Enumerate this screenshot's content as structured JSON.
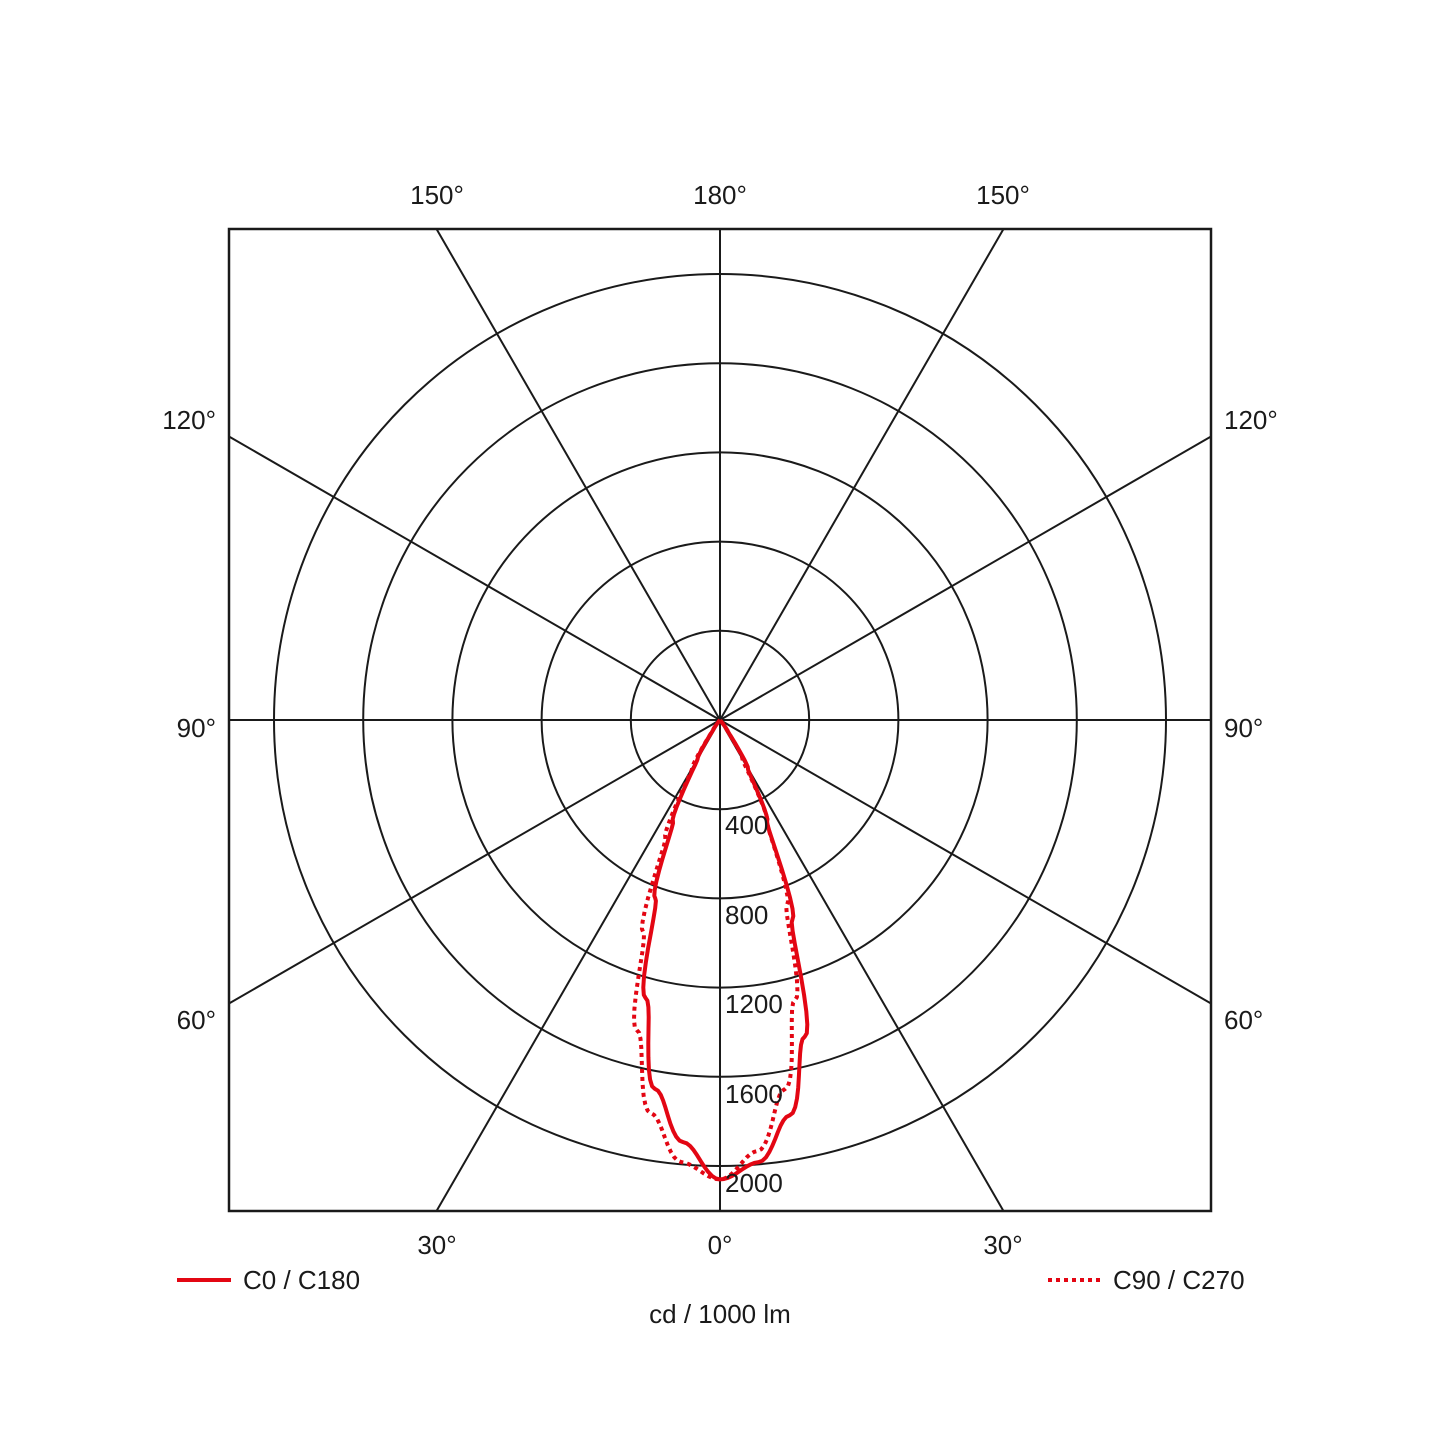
{
  "chart_data": {
    "type": "polar",
    "unit_label": "cd / 1000 lm",
    "radial_ticks": [
      "400",
      "800",
      "1200",
      "1600",
      "2000"
    ],
    "radial_tick_values": [
      400,
      800,
      1200,
      1600,
      2000
    ],
    "radial_max": 2000,
    "angle_labels": {
      "top": [
        "150°",
        "180°",
        "150°"
      ],
      "left": [
        "120°",
        "90°",
        "60°"
      ],
      "right": [
        "120°",
        "90°",
        "60°"
      ],
      "bottom": [
        "30°",
        "0°",
        "30°"
      ]
    },
    "grid": true,
    "legend_placement": "bottom",
    "angles_deg": [
      0,
      5,
      10,
      15,
      20,
      25,
      30,
      35,
      40
    ],
    "series": [
      {
        "name": "C0 / C180",
        "style": "solid",
        "color": "#e30613",
        "right_values": [
          2060,
          1990,
          1800,
          1470,
          950,
          500,
          250,
          60,
          0
        ],
        "left_values": [
          2060,
          1900,
          1680,
          1290,
          850,
          500,
          200,
          50,
          0
        ]
      },
      {
        "name": "C90 / C270",
        "style": "dotted",
        "color": "#e30613",
        "right_values": [
          2060,
          1940,
          1680,
          1300,
          880,
          500,
          200,
          50,
          0
        ],
        "left_values": [
          2060,
          1990,
          1790,
          1440,
          1010,
          580,
          250,
          60,
          0
        ]
      }
    ]
  }
}
